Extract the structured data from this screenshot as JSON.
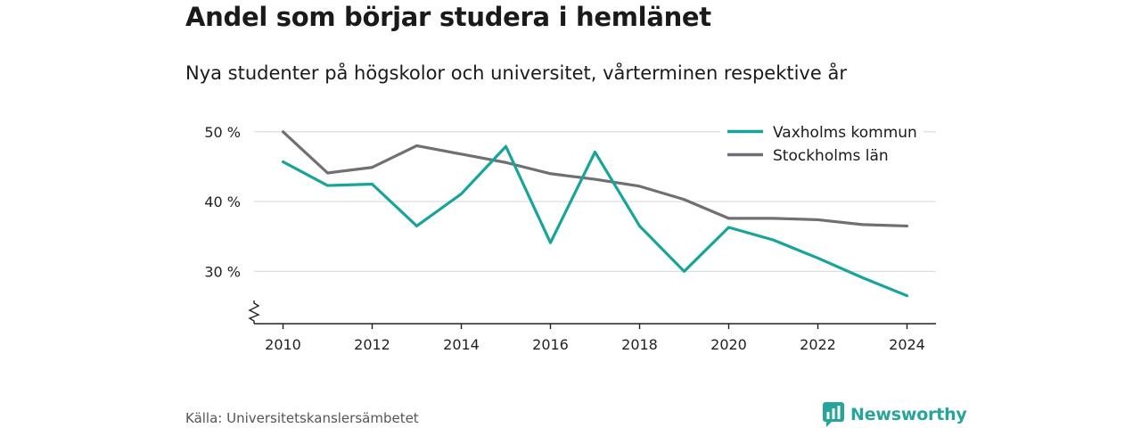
{
  "chart_data": {
    "type": "line",
    "title": "Andel som börjar studera i hemlänet",
    "subtitle": "Nya studenter på högskolor och universitet, vårterminen respektive år",
    "x": [
      2010,
      2011,
      2012,
      2013,
      2014,
      2015,
      2016,
      2017,
      2018,
      2019,
      2020,
      2021,
      2022,
      2023,
      2024
    ],
    "series": [
      {
        "name": "Vaxholms kommun",
        "color": "#17a59a",
        "values": [
          45.7,
          42.3,
          42.5,
          36.5,
          41.1,
          47.9,
          34.1,
          47.1,
          36.5,
          30.0,
          36.3,
          34.5,
          31.9,
          29.1,
          26.5
        ]
      },
      {
        "name": "Stockholms län",
        "color": "#6f6f74",
        "values": [
          50.0,
          44.1,
          44.9,
          48.0,
          46.8,
          45.6,
          44.0,
          43.2,
          42.2,
          40.3,
          37.6,
          37.6,
          37.4,
          36.7,
          36.5
        ]
      }
    ],
    "xticks": [
      2010,
      2012,
      2014,
      2016,
      2018,
      2020,
      2022,
      2024
    ],
    "xtick_labels": [
      "2010",
      "2012",
      "2014",
      "2016",
      "2018",
      "2020",
      "2022",
      "2024"
    ],
    "yticks": [
      30,
      40,
      50
    ],
    "ytick_labels": [
      "30 %",
      "40 %",
      "50 %"
    ],
    "ylim": [
      22.5,
      51
    ],
    "xlim": [
      2009.35,
      2024.65
    ],
    "xlabel": "",
    "ylabel": "",
    "grid": true,
    "axis_break": true,
    "legend_position": "top-right",
    "gridline_color": "#d9d9d9",
    "axis_color": "#222222"
  },
  "footer": {
    "source": "Källa: Universitetskanslersämbetet",
    "brand_name": "Newsworthy",
    "brand_icon": "newsworthy-logo-icon",
    "brand_color": "#27a59a"
  }
}
